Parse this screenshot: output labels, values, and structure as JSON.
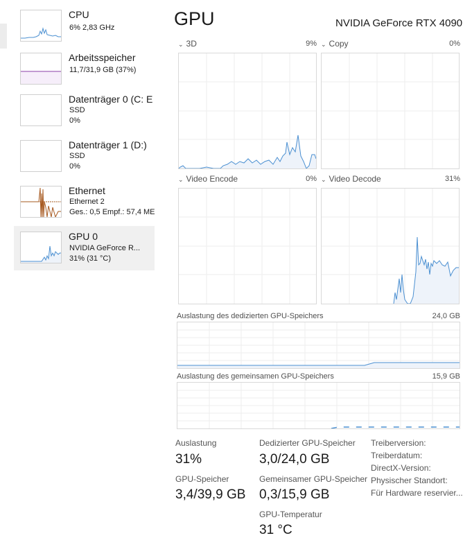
{
  "sidebar": {
    "items": [
      {
        "name": "CPU",
        "line1": "6% 2,83 GHz",
        "line2": ""
      },
      {
        "name": "Arbeitsspeicher",
        "line1": "11,7/31,9 GB (37%)",
        "line2": ""
      },
      {
        "name": "Datenträger 0 (C: E",
        "line1": "SSD",
        "line2": "0%"
      },
      {
        "name": "Datenträger 1 (D:)",
        "line1": "SSD",
        "line2": "0%"
      },
      {
        "name": "Ethernet",
        "line1": "Ethernet 2",
        "line2": "Ges.: 0,5 Empf.: 57,4 ME"
      },
      {
        "name": "GPU 0",
        "line1": "NVIDIA GeForce R...",
        "line2": "31% (31 °C)"
      }
    ]
  },
  "header": {
    "title": "GPU",
    "device": "NVIDIA GeForce RTX 4090"
  },
  "engines": [
    {
      "label": "3D",
      "value": "9%"
    },
    {
      "label": "Copy",
      "value": "0%"
    },
    {
      "label": "Video Encode",
      "value": "0%"
    },
    {
      "label": "Video Decode",
      "value": "31%"
    }
  ],
  "memory_graphs": {
    "dedicated": {
      "label": "Auslastung des dedizierten GPU-Speichers",
      "max": "24,0 GB"
    },
    "shared": {
      "label": "Auslastung des gemeinsamen GPU-Speichers",
      "max": "15,9 GB"
    }
  },
  "stats": {
    "utilization": {
      "label": "Auslastung",
      "value": "31%"
    },
    "dedicated_mem": {
      "label": "Dedizierter GPU-Speicher",
      "value": "3,0/24,0 GB"
    },
    "gpu_mem": {
      "label": "GPU-Speicher",
      "value": "3,4/39,9 GB"
    },
    "shared_mem": {
      "label": "Gemeinsamer GPU-Speicher",
      "value": "0,3/15,9 GB"
    },
    "temperature": {
      "label": "GPU-Temperatur",
      "value": "31 °C"
    }
  },
  "info_labels": [
    "Treiberversion:",
    "Treiberdatum:",
    "DirectX-Version:",
    "Physischer Standort:",
    "Für Hardware reservier..."
  ],
  "colors": {
    "gpu_line": "#4a8fd1",
    "gpu_fill": "#eef3fa",
    "memory_line": "#8b3fa8",
    "ethernet_line": "#a6581e",
    "selected_bg": "#f0f0f0"
  }
}
